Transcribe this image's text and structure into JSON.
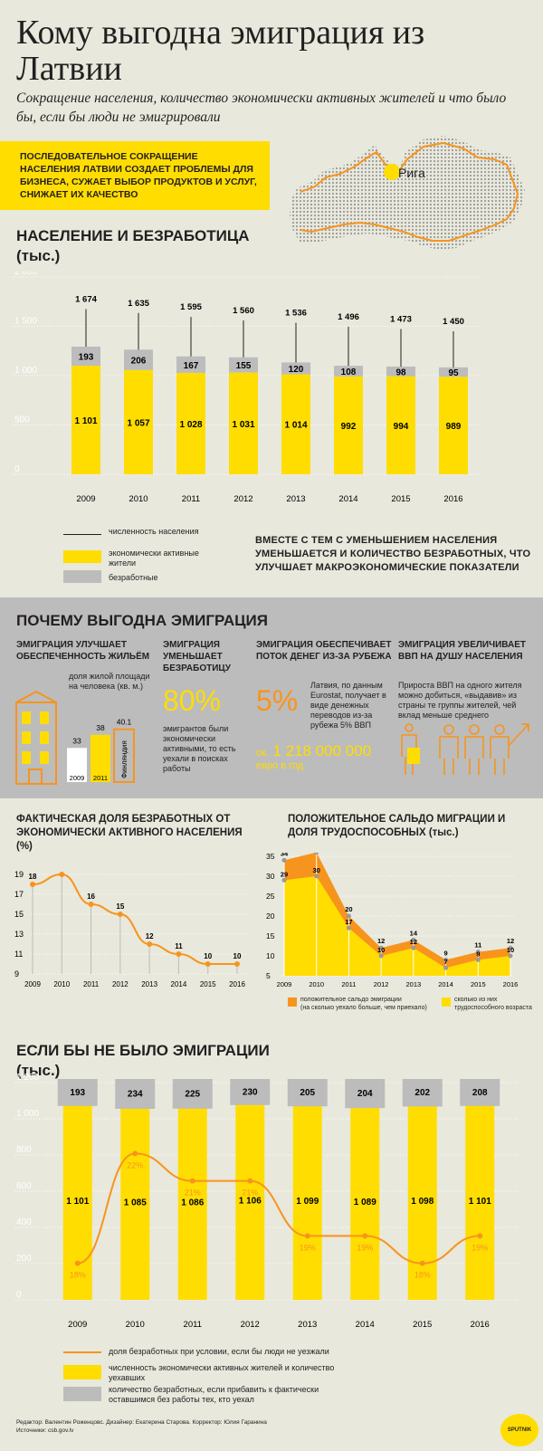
{
  "title": "Кому выгодна эмиграция из Латвии",
  "subtitle": "Сокращение населения, количество экономически активных жителей и что было бы, если бы люди не эмигрировали",
  "intro": "Последовательное сокращение населения Латвии создает проблемы для бизнеса, сужает выбор продуктов и услуг, снижает их качество",
  "map_label": "Рига",
  "colors": {
    "yellow": "#ffdd00",
    "gray": "#bcbcbc",
    "orange": "#f7941d",
    "bg": "#e8e8dc",
    "dark": "#231f20"
  },
  "section1": {
    "title": "Население и безработица",
    "unit": "(тыс.)",
    "legend": {
      "population": "численность населения",
      "active": "экономически активные жители",
      "unemployed": "безработные"
    },
    "note": "Вместе с тем с уменьшением населения уменьшается и количество безработных, что улучшает макроэкономические показатели"
  },
  "section2": {
    "title": "Почему выгодна эмиграция",
    "col1": {
      "heading": "Эмиграция улучшает обеспеченность жильём",
      "text": "доля жилой площади на человека (кв. м.)",
      "label_finland": "Финляндия"
    },
    "col2": {
      "heading": "Эмиграция уменьшает безработицу",
      "pct": "80%",
      "text": "эмигрантов были экономически активными, то есть уехали в поисках работы"
    },
    "col3": {
      "heading": "Эмиграция обеспечивает поток денег из-за рубежа",
      "pct": "5%",
      "text": "Латвия, по данным Eurostat, получает в виде денежных переводов из-за рубежа 5% ВВП",
      "amount_prefix": "ок.",
      "amount": "1 218 000 000",
      "amount_unit": "евро в год"
    },
    "col4": {
      "heading": "Эмиграция увеличивает ВВП на душу населения",
      "text": "Прироста ВВП на одного жителя можно добиться, «выдавив» из страны те группы жителей, чей вклад меньше среднего"
    }
  },
  "section3": {
    "title": "Фактическая доля безработных от экономически активного населения",
    "unit": "(%)"
  },
  "section3b": {
    "title": "Положительное сальдо миграции и доля трудоспособных",
    "unit": "(тыс.)",
    "legend_orange": "положительное сальдо эмиграции",
    "legend_orange_sub": "(на сколько уехало больше, чем приехало)",
    "legend_yellow": "сколько из них трудоспособного возраста"
  },
  "section4": {
    "title": "Если бы не было эмиграции",
    "unit": "(тыс.)",
    "legend": {
      "line": "доля безработных при условии, если бы люди не уезжали",
      "yellow": "численность экономически активных жителей и количество уехавших",
      "gray": "количество безработных, если прибавить к фактически оставшимся без работы тех, кто уехал"
    }
  },
  "footer": {
    "credits": "Редактор: Валентин Роженцовс. Дизайнер: Екатерина Старова. Корректор: Юлия Гаранина",
    "sources": "Источники: csb.gov.lv",
    "logo": "SPUTNIK"
  },
  "chart_data": [
    {
      "type": "bar",
      "title": "Население и безработица",
      "categories": [
        "2009",
        "2010",
        "2011",
        "2012",
        "2013",
        "2014",
        "2015",
        "2016"
      ],
      "ylim": [
        0,
        2000
      ],
      "yticks": [
        "0",
        "500",
        "1 000",
        "1 500",
        "2 000"
      ],
      "series": [
        {
          "name": "экономически активные жители",
          "values": [
            1101,
            1057,
            1028,
            1031,
            1014,
            992,
            994,
            989
          ],
          "labels": [
            "1 101",
            "1 057",
            "1 028",
            "1 031",
            "1 014",
            "992",
            "994",
            "989"
          ]
        },
        {
          "name": "безработные",
          "values": [
            193,
            206,
            167,
            155,
            120,
            108,
            98,
            95
          ],
          "labels": [
            "193",
            "206",
            "167",
            "155",
            "120",
            "108",
            "98",
            "95"
          ]
        },
        {
          "name": "численность населения",
          "values": [
            1674,
            1635,
            1595,
            1560,
            1536,
            1496,
            1473,
            1450
          ],
          "labels": [
            "1 674",
            "1 635",
            "1 595",
            "1 560",
            "1 536",
            "1 496",
            "1 473",
            "1 450"
          ]
        }
      ]
    },
    {
      "type": "line",
      "title": "Фактическая доля безработных от экономически активного населения",
      "categories": [
        "2009",
        "2010",
        "2011",
        "2012",
        "2013",
        "2014",
        "2015",
        "2016"
      ],
      "ylim": [
        9,
        19
      ],
      "yticks": [
        "9",
        "11",
        "13",
        "15",
        "17",
        "19"
      ],
      "values": [
        18,
        19,
        16,
        15,
        12,
        11,
        10,
        10
      ]
    },
    {
      "type": "area",
      "title": "Положительное сальдо миграции и доля трудоспособных",
      "categories": [
        "2009",
        "2010",
        "2011",
        "2012",
        "2013",
        "2014",
        "2015",
        "2016"
      ],
      "ylim": [
        5,
        35
      ],
      "yticks": [
        "5",
        "10",
        "15",
        "20",
        "25",
        "30",
        "35"
      ],
      "series": [
        {
          "name": "положительное сальдо эмиграции",
          "values": [
            34,
            36,
            20,
            12,
            14,
            9,
            11,
            12
          ]
        },
        {
          "name": "сколько из них трудоспособного возраста",
          "values": [
            29,
            30,
            17,
            10,
            12,
            7,
            9,
            10
          ]
        }
      ]
    },
    {
      "type": "bar",
      "title": "Если бы не было эмиграции",
      "categories": [
        "2009",
        "2010",
        "2011",
        "2012",
        "2013",
        "2014",
        "2015",
        "2016"
      ],
      "ylim": [
        0,
        1200
      ],
      "yticks": [
        "0",
        "200",
        "400",
        "600",
        "800",
        "1 000",
        "1 200"
      ],
      "series": [
        {
          "name": "численность экономически активных жителей и количество уехавших",
          "values": [
            1101,
            1085,
            1086,
            1106,
            1099,
            1089,
            1098,
            1101
          ],
          "labels": [
            "1 101",
            "1 085",
            "1 086",
            "1 106",
            "1 099",
            "1 089",
            "1 098",
            "1 101"
          ]
        },
        {
          "name": "количество безработных",
          "values": [
            193,
            234,
            225,
            230,
            205,
            204,
            202,
            208
          ],
          "labels": [
            "193",
            "234",
            "225",
            "230",
            "205",
            "204",
            "202",
            "208"
          ]
        },
        {
          "name": "доля безработных при условии, если бы люди не уезжали",
          "values": [
            18,
            22,
            21,
            21,
            19,
            19,
            18,
            19
          ],
          "labels": [
            "18%",
            "22%",
            "21%",
            "21%",
            "19%",
            "19%",
            "18%",
            "19%"
          ]
        }
      ]
    },
    {
      "type": "bar",
      "title": "доля жилой площади на человека (кв. м.)",
      "categories": [
        "2009",
        "2011",
        "Финляндия"
      ],
      "values": [
        33,
        38,
        40.1
      ],
      "labels": [
        "33",
        "38",
        "40.1"
      ]
    }
  ]
}
